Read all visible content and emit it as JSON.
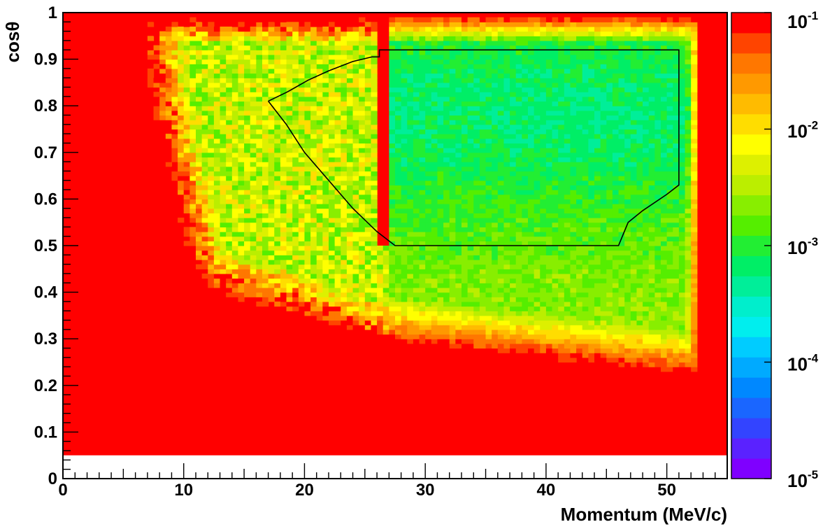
{
  "chart_data": {
    "type": "heatmap",
    "xlabel": "Momentum (MeV/c)",
    "ylabel": "cosθ",
    "xlim": [
      0,
      55
    ],
    "ylim": [
      0,
      1
    ],
    "x_ticks": [
      0,
      10,
      20,
      30,
      40,
      50
    ],
    "x_tick_labels": [
      "0",
      "10",
      "20",
      "30",
      "40",
      "50"
    ],
    "y_ticks": [
      0,
      0.1,
      0.2,
      0.3,
      0.4,
      0.5,
      0.6,
      0.7,
      0.8,
      0.9,
      1
    ],
    "y_tick_labels": [
      "0",
      "0.1",
      "0.2",
      "0.3",
      "0.4",
      "0.5",
      "0.6",
      "0.7",
      "0.8",
      "0.9",
      "1"
    ],
    "color_scale": {
      "type": "log",
      "min": 1e-05,
      "max": 0.1,
      "labels": [
        {
          "value": 0.1,
          "base": "10",
          "exp": "-1"
        },
        {
          "value": 0.01,
          "base": "10",
          "exp": "-2"
        },
        {
          "value": 0.001,
          "base": "10",
          "exp": "-3"
        },
        {
          "value": 0.0001,
          "base": "10",
          "exp": "-4"
        },
        {
          "value": 1e-05,
          "base": "10",
          "exp": "-5"
        }
      ],
      "colors": [
        "#7f00ff",
        "#5a22ff",
        "#3344ff",
        "#1a66ff",
        "#0088ff",
        "#00aaff",
        "#00ccff",
        "#00eeee",
        "#00eecc",
        "#00ee99",
        "#00ee66",
        "#22ee33",
        "#55ee00",
        "#88ee00",
        "#bbee00",
        "#ddf000",
        "#ffff00",
        "#ffdd00",
        "#ffbb00",
        "#ff9900",
        "#ff7700",
        "#ff4400",
        "#ff0000"
      ]
    },
    "regions": [
      {
        "description": "saturated, value >= 1e-1",
        "x_range": [
          0,
          55
        ],
        "y_range": [
          0.05,
          1
        ],
        "level": 0.1
      },
      {
        "description": "signal-region plateau",
        "x_range": [
          27,
          52.5
        ],
        "y_range": [
          0.22,
          0.98
        ],
        "level": 0.0015
      },
      {
        "description": "low-momentum band",
        "x_range": [
          9,
          27
        ],
        "y_range": [
          0.3,
          0.97
        ],
        "level": 0.004
      },
      {
        "description": "vertical edge feature",
        "x_range": [
          26.2,
          26.8
        ],
        "y_range": [
          0.5,
          0.98
        ],
        "level": 0.1
      }
    ],
    "cut_contour": {
      "points": [
        [
          17,
          0.81
        ],
        [
          18.6,
          0.83
        ],
        [
          20.3,
          0.855
        ],
        [
          22,
          0.875
        ],
        [
          24,
          0.895
        ],
        [
          25.6,
          0.905
        ],
        [
          26.2,
          0.905
        ],
        [
          26.2,
          0.92
        ],
        [
          51,
          0.92
        ],
        [
          51,
          0.63
        ],
        [
          50,
          0.61
        ],
        [
          48,
          0.575
        ],
        [
          46.8,
          0.55
        ],
        [
          46,
          0.5
        ],
        [
          27.5,
          0.5
        ],
        [
          26,
          0.53
        ],
        [
          24,
          0.58
        ],
        [
          22,
          0.64
        ],
        [
          20,
          0.7
        ],
        [
          18.5,
          0.76
        ],
        [
          17,
          0.81
        ]
      ]
    }
  }
}
